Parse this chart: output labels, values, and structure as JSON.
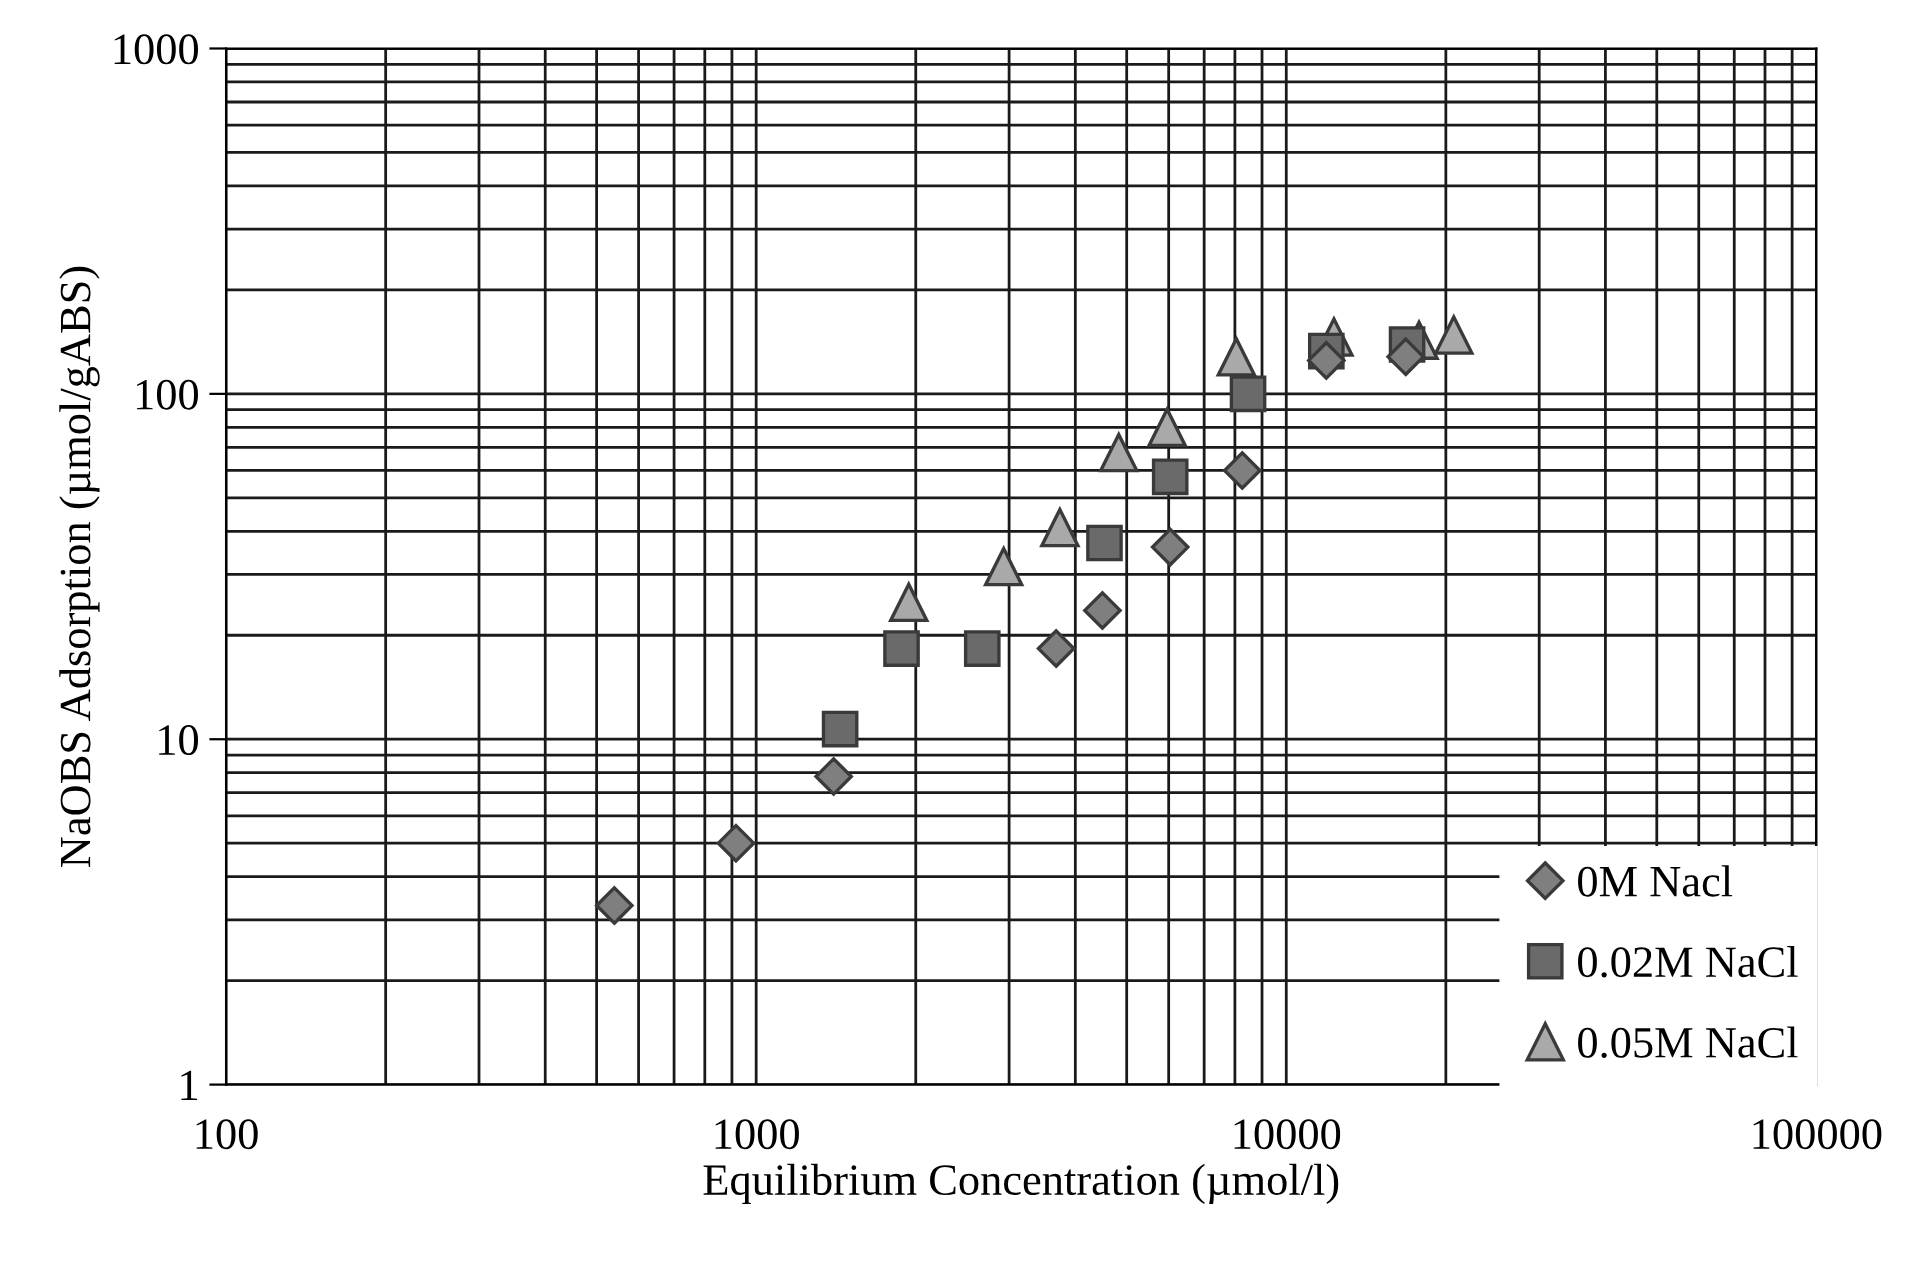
{
  "chart_data": {
    "type": "scatter",
    "xlabel": "Equilibrium Concentration (µmol/l)",
    "ylabel": "NaOBS Adsorption (µmol/gABS)",
    "log": "xy",
    "xlim": [
      100,
      100000
    ],
    "ylim": [
      1,
      1000
    ],
    "xticks": [
      100,
      1000,
      10000,
      100000
    ],
    "yticks": [
      1,
      10,
      100,
      1000
    ],
    "grid": true,
    "legend": "bottom right",
    "series": [
      {
        "name": "0M Nacl",
        "color": "#7f7f7f",
        "marker": "diamond",
        "x": [
          540,
          916,
          1400,
          3680,
          4500,
          6040,
          8260,
          11900,
          16800
        ],
        "values": [
          3.3,
          5.0,
          7.8,
          18.3,
          23.6,
          36,
          60,
          125,
          128
        ]
      },
      {
        "name": "0.02M NaCl",
        "color": "#6a6a6a",
        "marker": "square",
        "x": [
          1440,
          1880,
          2670,
          4540,
          6040,
          8470,
          11900,
          16900
        ],
        "values": [
          10.7,
          18.3,
          18.3,
          37,
          57.5,
          100,
          133,
          139
        ]
      },
      {
        "name": "0.05M NaCl",
        "color": "#a9a9a9",
        "marker": "triangle",
        "x": [
          1940,
          2930,
          3740,
          4830,
          5960,
          8050,
          12300,
          17800,
          20700
        ],
        "values": [
          24.9,
          31.6,
          41,
          67.6,
          80,
          128,
          146,
          143,
          148
        ]
      }
    ]
  }
}
